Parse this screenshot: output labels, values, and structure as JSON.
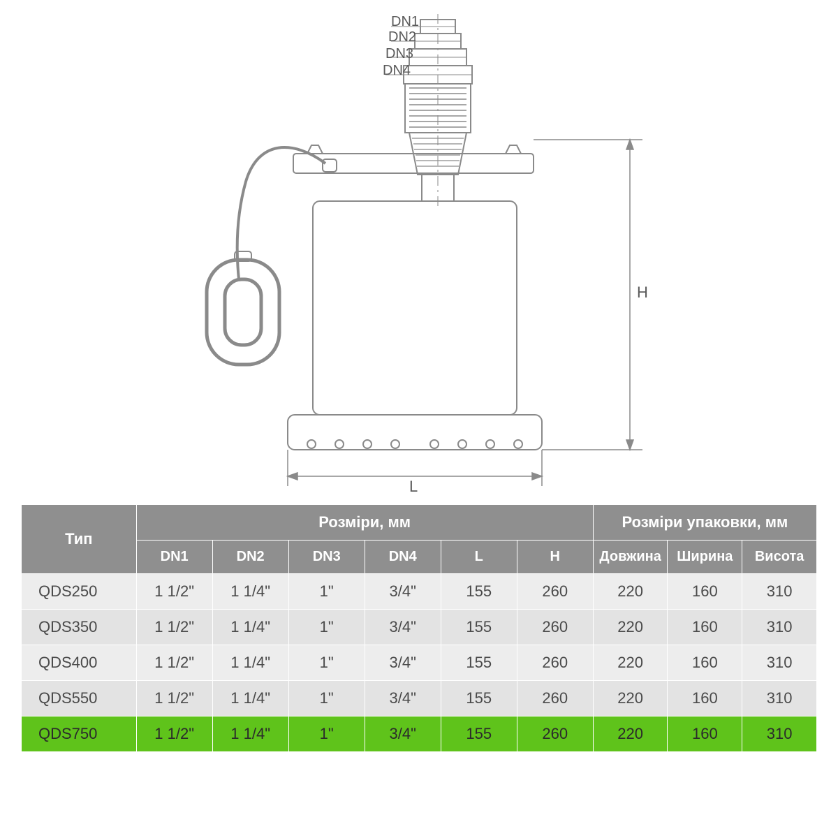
{
  "diagram": {
    "stroke": "#8a8a8a",
    "stroke_thin": "#8a8a8a",
    "background": "#ffffff",
    "dn_labels": [
      "DN1",
      "DN2",
      "DN3",
      "DN4"
    ],
    "dim_L": "L",
    "dim_H": "H"
  },
  "table": {
    "header_bg": "#8f8f8f",
    "header_fg": "#ffffff",
    "row_bg": "#ededed",
    "row_alt_bg": "#e3e3e3",
    "highlight_bg": "#5fc31b",
    "border_color": "#ffffff",
    "col_type_label": "Тип",
    "group_sizes_label": "Розміри, мм",
    "group_pkg_label": "Розміри упаковки, мм",
    "sub_dn1": "DN1",
    "sub_dn2": "DN2",
    "sub_dn3": "DN3",
    "sub_dn4": "DN4",
    "sub_L": "L",
    "sub_H": "H",
    "sub_len": "Довжина",
    "sub_wid": "Ширина",
    "sub_hei": "Висота",
    "rows": [
      {
        "type": "QDS250",
        "dn1": "1 1/2\"",
        "dn2": "1 1/4\"",
        "dn3": "1\"",
        "dn4": "3/4\"",
        "L": "155",
        "H": "260",
        "len": "220",
        "wid": "160",
        "hei": "310",
        "hl": false
      },
      {
        "type": "QDS350",
        "dn1": "1 1/2\"",
        "dn2": "1 1/4\"",
        "dn3": "1\"",
        "dn4": "3/4\"",
        "L": "155",
        "H": "260",
        "len": "220",
        "wid": "160",
        "hei": "310",
        "hl": false
      },
      {
        "type": "QDS400",
        "dn1": "1 1/2\"",
        "dn2": "1 1/4\"",
        "dn3": "1\"",
        "dn4": "3/4\"",
        "L": "155",
        "H": "260",
        "len": "220",
        "wid": "160",
        "hei": "310",
        "hl": false
      },
      {
        "type": "QDS550",
        "dn1": "1 1/2\"",
        "dn2": "1 1/4\"",
        "dn3": "1\"",
        "dn4": "3/4\"",
        "L": "155",
        "H": "260",
        "len": "220",
        "wid": "160",
        "hei": "310",
        "hl": false
      },
      {
        "type": "QDS750",
        "dn1": "1 1/2\"",
        "dn2": "1 1/4\"",
        "dn3": "1\"",
        "dn4": "3/4\"",
        "L": "155",
        "H": "260",
        "len": "220",
        "wid": "160",
        "hei": "310",
        "hl": true
      }
    ]
  }
}
